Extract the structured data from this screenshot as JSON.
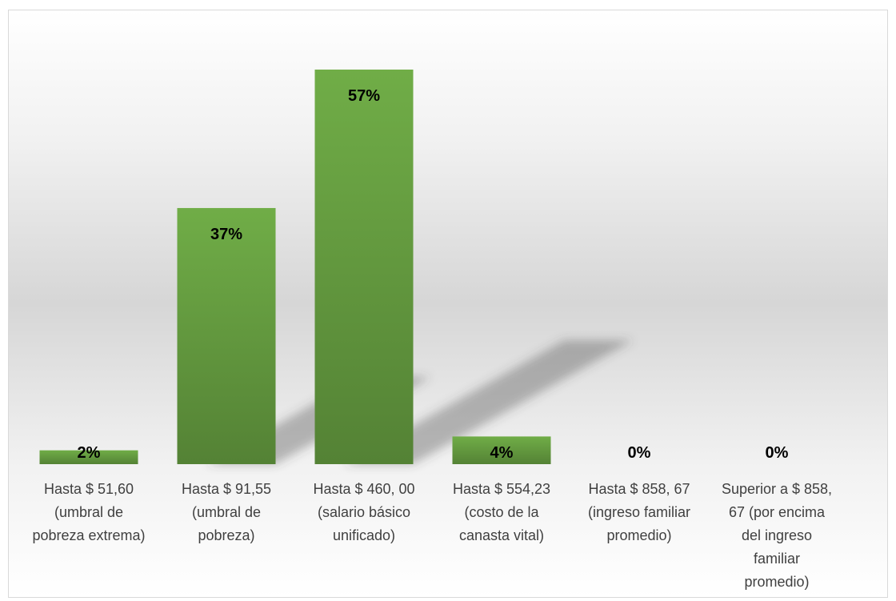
{
  "chart_data": {
    "type": "bar",
    "categories": [
      [
        "Hasta $ 51,60",
        "(umbral de",
        "pobreza extrema)"
      ],
      [
        "Hasta $ 91,55",
        "(umbral de",
        "pobreza)"
      ],
      [
        "Hasta $ 460, 00",
        "(salario básico",
        "unificado)"
      ],
      [
        "Hasta $ 554,23",
        "(costo de la",
        "canasta vital)"
      ],
      [
        "Hasta $ 858, 67",
        "(ingreso familiar",
        "promedio)"
      ],
      [
        "Superior a $ 858,",
        "67 (por encima",
        "del ingreso",
        "familiar",
        "promedio)"
      ]
    ],
    "values": [
      2,
      37,
      57,
      4,
      0,
      0
    ],
    "data_labels": [
      "2%",
      "37%",
      "57%",
      "4%",
      "0%",
      "0%"
    ],
    "ylim": [
      0,
      60
    ],
    "grid": false,
    "legend": "none",
    "title": "",
    "xlabel": "",
    "ylabel": "",
    "colors": {
      "bar_top": "#70ad47",
      "bar_bottom": "#548235",
      "label_text": "#404040",
      "value_text": "#000000"
    }
  }
}
